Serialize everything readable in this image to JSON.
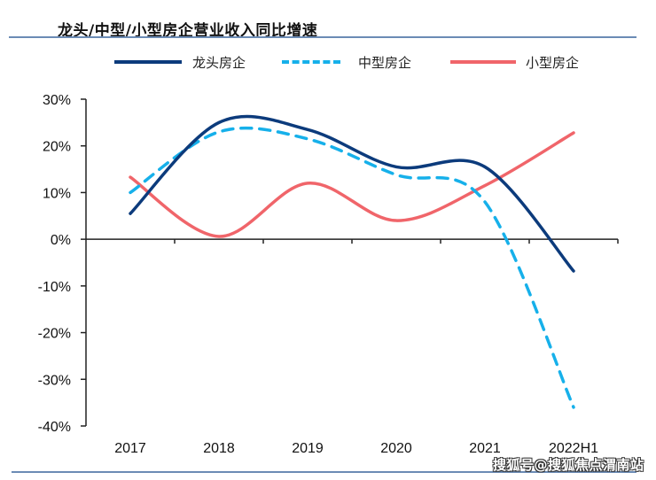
{
  "chart_data": {
    "type": "line",
    "title": "龙头/中型/小型房企营业收入同比增速",
    "xlabel": "",
    "ylabel": "",
    "categories": [
      "2017",
      "2018",
      "2019",
      "2020",
      "2021",
      "2022H1"
    ],
    "ylim": [
      -40,
      30
    ],
    "yticks": [
      30,
      20,
      10,
      0,
      -10,
      -20,
      -30,
      -40
    ],
    "ytick_labels": [
      "30%",
      "20%",
      "10%",
      "0%",
      "-10%",
      "-20%",
      "-30%",
      "-40%"
    ],
    "grid": false,
    "smooth": true,
    "legend_position": "top",
    "series": [
      {
        "name": "龙头房企",
        "color": "#0c3b7c",
        "style": "solid",
        "values": [
          5.5,
          25.0,
          23.5,
          15.5,
          15.5,
          -6.8
        ]
      },
      {
        "name": "中型房企",
        "color": "#16b0ea",
        "style": "dashed",
        "values": [
          10.0,
          23.0,
          21.5,
          13.8,
          8.0,
          -36.0
        ]
      },
      {
        "name": "小型房企",
        "color": "#f0656a",
        "style": "solid",
        "values": [
          13.3,
          0.6,
          12.0,
          4.0,
          11.5,
          22.8
        ]
      }
    ]
  },
  "watermark": "搜狐号@搜狐焦点渭南站"
}
